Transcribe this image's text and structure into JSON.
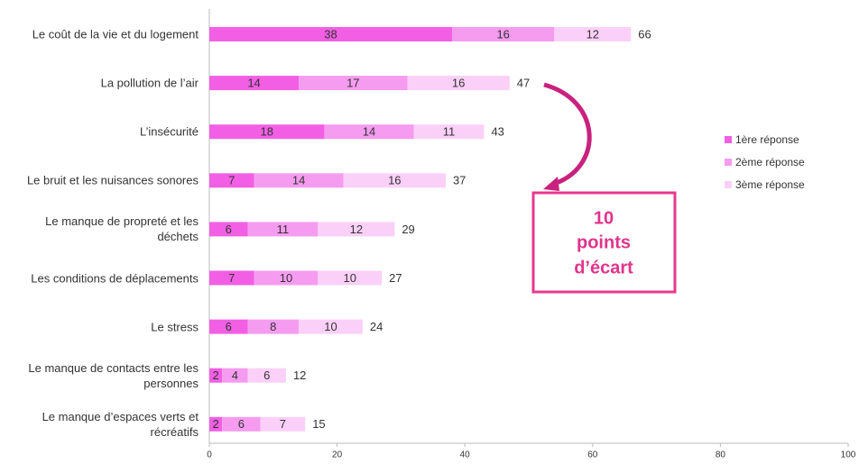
{
  "chart_data": {
    "type": "stacked-barh",
    "categories": [
      "Le coût de la vie et du logement",
      "La pollution de l’air",
      "L’insécurité",
      "Le bruit et les nuisances sonores",
      "Le manque de propreté et les\ndéchets",
      "Les conditions de déplacements",
      "Le stress",
      "Le manque de contacts entre les\npersonnes",
      "Le manque d’espaces verts et\nrécréatifs"
    ],
    "series": [
      {
        "name": "1ère réponse",
        "color": "#f25fe4",
        "values": [
          38,
          14,
          18,
          7,
          6,
          7,
          6,
          2,
          2
        ]
      },
      {
        "name": "2ème réponse",
        "color": "#f59cf0",
        "values": [
          16,
          17,
          14,
          14,
          11,
          10,
          8,
          4,
          6
        ]
      },
      {
        "name": "3ème réponse",
        "color": "#fbd0f8",
        "values": [
          12,
          16,
          11,
          16,
          12,
          10,
          10,
          6,
          7
        ]
      }
    ],
    "totals": [
      66,
      47,
      43,
      37,
      29,
      27,
      24,
      12,
      15
    ],
    "xlim": [
      0,
      100
    ],
    "xticks": [
      0,
      20,
      40,
      60,
      80,
      100
    ],
    "legend": "right",
    "annotation": [
      "10",
      "points",
      "d’écart"
    ]
  }
}
